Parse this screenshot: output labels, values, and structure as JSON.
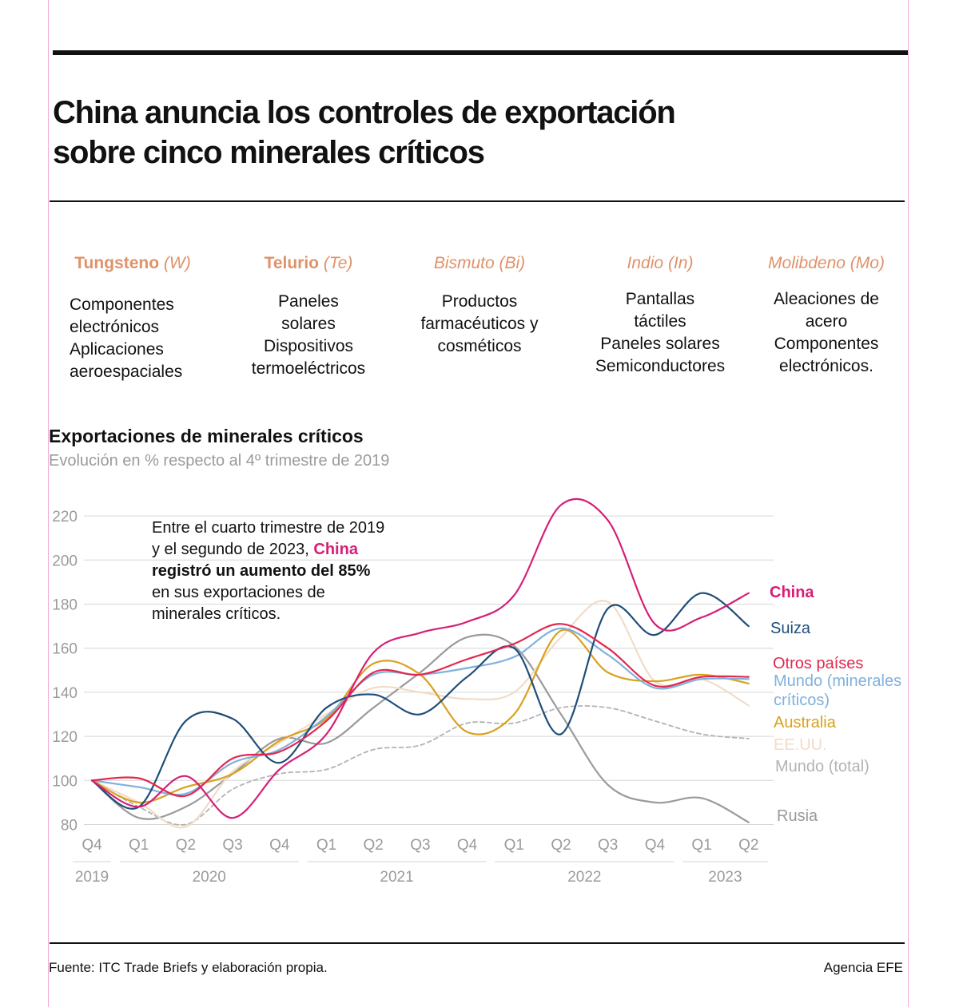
{
  "header": {
    "title_line1": "China anuncia los controles de exportación",
    "title_line2": "sobre cinco minerales críticos"
  },
  "minerals": [
    {
      "name": "Tungsteno",
      "symbol": "(W)",
      "uses": [
        "Componentes",
        "electrónicos",
        "Aplicaciones",
        "aeroespaciales"
      ]
    },
    {
      "name": "Telurio",
      "symbol": "(Te)",
      "uses": [
        "Paneles",
        "solares",
        "Dispositivos",
        "termoeléctricos"
      ]
    },
    {
      "name": "Bismuto",
      "symbol": "(Bi)",
      "uses": [
        "Productos",
        "farmacéuticos y",
        "cosméticos"
      ]
    },
    {
      "name": "Indio",
      "symbol": "(In)",
      "uses": [
        "Pantallas",
        "táctiles",
        "Paneles solares",
        "Semiconductores"
      ]
    },
    {
      "name": "Molibdeno",
      "symbol": "(Mo)",
      "uses": [
        "Aleaciones de",
        "acero",
        "Componentes",
        "electrónicos."
      ]
    }
  ],
  "annotation": {
    "line1": "Entre el cuarto trimestre de 2019",
    "line2_prefix": "y el segundo de 2023, ",
    "line2_highlight": "China",
    "line3": "registró un aumento del 85%",
    "line4": "en sus exportaciones de",
    "line5": "minerales críticos."
  },
  "footer": {
    "source": "Fuente: ITC Trade Briefs y elaboración propia.",
    "agency": "Agencia EFE"
  },
  "chart_data": {
    "type": "line",
    "title": "Exportaciones de minerales críticos",
    "subtitle": "Evolución en % respecto al 4º trimestre de 2019",
    "x": [
      "Q4",
      "Q1",
      "Q2",
      "Q3",
      "Q4",
      "Q1",
      "Q2",
      "Q3",
      "Q4",
      "Q1",
      "Q2",
      "Q3",
      "Q4",
      "Q1",
      "Q2"
    ],
    "years": [
      {
        "label": "2019",
        "from": 0,
        "to": 0
      },
      {
        "label": "2020",
        "from": 1,
        "to": 4
      },
      {
        "label": "2021",
        "from": 5,
        "to": 8
      },
      {
        "label": "2022",
        "from": 9,
        "to": 12
      },
      {
        "label": "2023",
        "from": 13,
        "to": 14
      }
    ],
    "yticks": [
      80,
      100,
      120,
      140,
      160,
      180,
      200,
      220
    ],
    "ylim": [
      80,
      225
    ],
    "grid": true,
    "series": [
      {
        "name": "Rusia",
        "color": "#9a9a9a",
        "dashed": false,
        "values": [
          100,
          83,
          88,
          103,
          119,
          117,
          133,
          149,
          165,
          161,
          130,
          98,
          90,
          92,
          81
        ]
      },
      {
        "name": "Mundo (total)",
        "color": "#b3b3b3",
        "dashed": true,
        "values": [
          100,
          88,
          80,
          96,
          103,
          105,
          114,
          116,
          126,
          126,
          133,
          133,
          127,
          121,
          119
        ]
      },
      {
        "name": "EE.UU.",
        "color": "#f1dcc8",
        "dashed": false,
        "values": [
          100,
          90,
          79,
          104,
          117,
          130,
          142,
          140,
          137,
          140,
          165,
          181,
          145,
          146,
          134
        ]
      },
      {
        "name": "Australia",
        "color": "#d9a21e",
        "dashed": false,
        "values": [
          100,
          90,
          97,
          103,
          118,
          128,
          153,
          148,
          122,
          130,
          168,
          149,
          145,
          148,
          144
        ]
      },
      {
        "name": "Mundo (minerales críticos)",
        "color": "#7fb1dc",
        "dashed": false,
        "values": [
          100,
          97,
          94,
          108,
          114,
          129,
          148,
          148,
          151,
          156,
          169,
          157,
          142,
          146,
          146
        ]
      },
      {
        "name": "Suiza",
        "color": "#1e4e79",
        "dashed": false,
        "values": [
          100,
          88,
          127,
          128,
          108,
          133,
          139,
          130,
          147,
          160,
          121,
          178,
          166,
          185,
          170
        ]
      },
      {
        "name": "Otros países",
        "color": "#e1284f",
        "dashed": false,
        "values": [
          100,
          101,
          93,
          110,
          113,
          127,
          149,
          148,
          155,
          162,
          171,
          160,
          143,
          147,
          147
        ]
      },
      {
        "name": "China",
        "color": "#d61f76",
        "dashed": false,
        "values": [
          100,
          88,
          102,
          83,
          105,
          121,
          158,
          167,
          172,
          184,
          225,
          218,
          171,
          174,
          185
        ]
      }
    ],
    "labels": [
      {
        "text": "China",
        "series": "China",
        "color": "#d61f76",
        "bold": true
      },
      {
        "text": "Suiza",
        "series": "Suiza",
        "color": "#1e4e79",
        "bold": false
      },
      {
        "text": "Otros países",
        "series": "Otros países",
        "color": "#e1284f",
        "bold": false
      },
      {
        "text": "Mundo (minerales",
        "series": "Mundo (minerales críticos)",
        "color": "#7fb1dc",
        "bold": false
      },
      {
        "text": "críticos)",
        "series": "Mundo (minerales críticos)",
        "color": "#7fb1dc",
        "bold": false
      },
      {
        "text": "Australia",
        "series": "Australia",
        "color": "#d9a21e",
        "bold": false
      },
      {
        "text": "EE.UU.",
        "series": "EE.UU.",
        "color": "#f1dcc8",
        "bold": false
      },
      {
        "text": "Mundo (total)",
        "series": "Mundo (total)",
        "color": "#b3b3b3",
        "bold": false
      },
      {
        "text": "Rusia",
        "series": "Rusia",
        "color": "#9a9a9a",
        "bold": false
      }
    ]
  }
}
